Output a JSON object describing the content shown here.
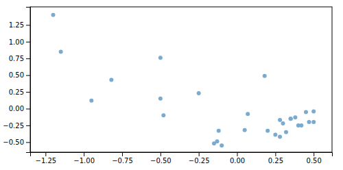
{
  "chart_data": {
    "type": "scatter",
    "x": [
      -1.2,
      -1.15,
      -0.95,
      -0.82,
      -0.5,
      -0.5,
      -0.25,
      -0.13,
      -0.48,
      0.07,
      0.05,
      -0.12,
      0.18,
      0.25,
      0.28,
      0.35,
      0.38,
      0.4,
      0.42,
      0.45,
      0.47,
      0.5,
      0.3,
      0.32,
      0.35,
      0.5,
      0.28,
      0.2,
      -0.1,
      -0.15
    ],
    "y": [
      1.4,
      0.85,
      0.12,
      0.43,
      0.76,
      0.15,
      0.23,
      -0.49,
      -0.1,
      -0.08,
      -0.32,
      -0.33,
      0.49,
      -0.39,
      -0.17,
      -0.15,
      -0.13,
      -0.25,
      -0.25,
      -0.05,
      -0.2,
      -0.04,
      -0.22,
      -0.35,
      -0.15,
      -0.2,
      -0.42,
      -0.33,
      -0.55,
      -0.52
    ],
    "color": "#7aabcf",
    "xlim": [
      -1.35,
      0.62
    ],
    "ylim": [
      -0.65,
      1.52
    ],
    "xticks": [
      {
        "value": -1.25,
        "label": "−1.25"
      },
      {
        "value": -1.0,
        "label": "−1.00"
      },
      {
        "value": -0.75,
        "label": "−0.75"
      },
      {
        "value": -0.5,
        "label": "−0.50"
      },
      {
        "value": -0.25,
        "label": "−0.25"
      },
      {
        "value": 0.0,
        "label": "0.00"
      },
      0.25,
      {
        "value": 0.5,
        "label": "0.50"
      }
    ],
    "yticks": [
      {
        "value": -0.5,
        "label": "−0.50"
      },
      {
        "value": -0.25,
        "label": "−0.25"
      },
      {
        "value": 0.0,
        "label": "0.00"
      },
      0.25,
      {
        "value": 0.5,
        "label": "0.50"
      },
      0.75,
      {
        "value": 1.0,
        "label": "1.00"
      },
      1.25
    ],
    "grid": false
  }
}
